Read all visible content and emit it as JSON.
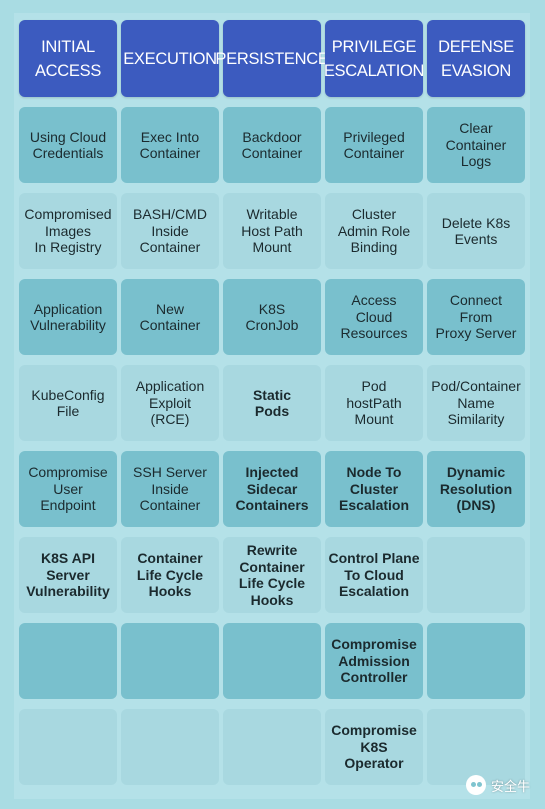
{
  "headers": [
    "INITIAL\nACCESS",
    "EXECUTION",
    "PERSISTENCE",
    "PRIVILEGE\nESCALATION",
    "DEFENSE\nEVASION"
  ],
  "rows": [
    [
      "Using Cloud\nCredentials",
      "Exec Into\nContainer",
      "Backdoor\nContainer",
      "Privileged\nContainer",
      "Clear\nContainer\nLogs"
    ],
    [
      "Compromised\nImages\nIn Registry",
      "BASH/CMD\nInside\nContainer",
      "Writable\nHost Path\nMount",
      "Cluster\nAdmin Role\nBinding",
      "Delete K8s\nEvents"
    ],
    [
      "Application\nVulnerability",
      "New\nContainer",
      "K8S\nCronJob",
      "Access\nCloud\nResources",
      "Connect\nFrom\nProxy Server"
    ],
    [
      "KubeConfig\nFile",
      "Application\nExploit\n(RCE)",
      "Static\nPods",
      "Pod\nhostPath\nMount",
      "Pod/Container\nName\nSimilarity"
    ],
    [
      "Compromise\nUser\nEndpoint",
      "SSH Server\nInside\nContainer",
      "Injected\nSidecar\nContainers",
      "Node To\nCluster\nEscalation",
      "Dynamic\nResolution\n(DNS)"
    ],
    [
      "K8S API\nServer\nVulnerability",
      "Container\nLife Cycle\nHooks",
      "Rewrite\nContainer\nLife Cycle\nHooks",
      "Control Plane\nTo Cloud\nEscalation",
      ""
    ],
    [
      "",
      "",
      "",
      "Compromise\nAdmission\nController",
      ""
    ],
    [
      "",
      "",
      "",
      "Compromise\nK8S\nOperator",
      ""
    ]
  ],
  "colors": {
    "header": "#3c5bbf",
    "dark_cell": "#79c0cd",
    "light_cell": "#a8d8e0",
    "background": "#a9dce3"
  },
  "watermark": {
    "icon": "wechat-icon",
    "text": "安全牛"
  }
}
